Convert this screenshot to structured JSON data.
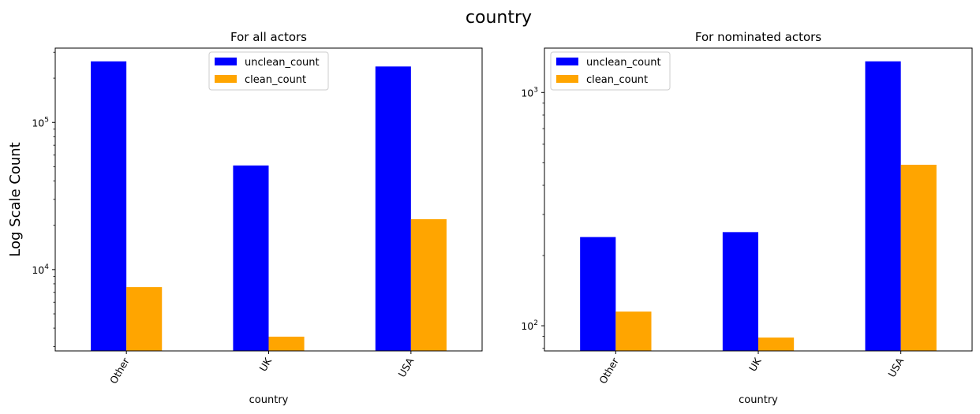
{
  "figure": {
    "suptitle": "country",
    "ylabel": "Log Scale Count"
  },
  "colors": {
    "unclean_count": "#0000ff",
    "clean_count": "#ffa500"
  },
  "chart_data": [
    {
      "type": "bar",
      "title": "For all actors",
      "xlabel": "country",
      "ylabel": "Log Scale Count",
      "yscale": "log",
      "ylim": [
        2800,
        320000
      ],
      "yticks": [
        {
          "value": 10000,
          "label_base": "10",
          "label_exp": "4"
        },
        {
          "value": 100000,
          "label_base": "10",
          "label_exp": "5"
        }
      ],
      "categories": [
        "Other",
        "UK",
        "USA"
      ],
      "series": [
        {
          "name": "unclean_count",
          "values": [
            260000,
            51000,
            240000
          ]
        },
        {
          "name": "clean_count",
          "values": [
            7600,
            3500,
            22000
          ]
        }
      ],
      "legend": "top-center",
      "grid": false
    },
    {
      "type": "bar",
      "title": "For nominated actors",
      "xlabel": "country",
      "yscale": "log",
      "ylim": [
        78,
        1550
      ],
      "yticks": [
        {
          "value": 100,
          "label_base": "10",
          "label_exp": "2"
        },
        {
          "value": 1000,
          "label_base": "10",
          "label_exp": "3"
        }
      ],
      "categories": [
        "Other",
        "UK",
        "USA"
      ],
      "series": [
        {
          "name": "unclean_count",
          "values": [
            240,
            252,
            1360
          ]
        },
        {
          "name": "clean_count",
          "values": [
            115,
            89,
            490
          ]
        }
      ],
      "legend": "top-left",
      "grid": false
    }
  ]
}
